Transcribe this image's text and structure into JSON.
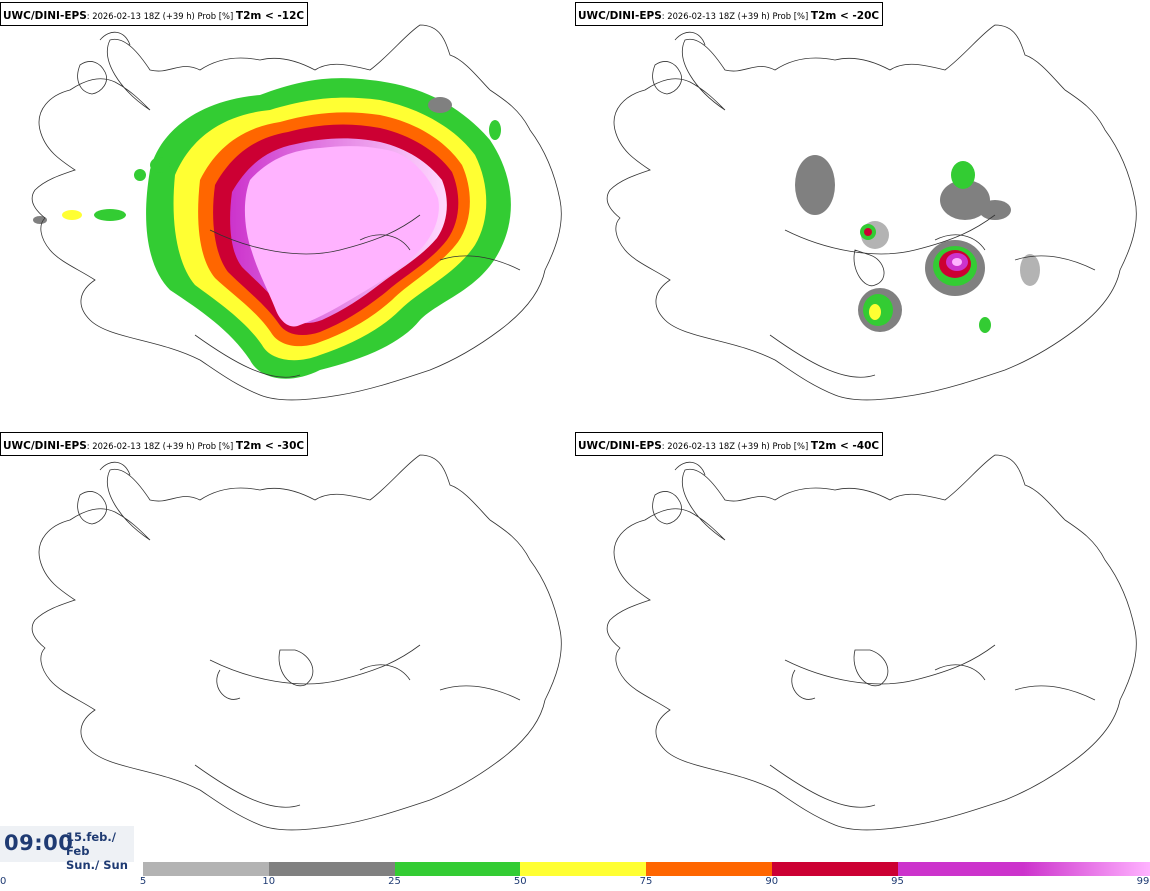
{
  "panels": [
    {
      "model": "UWC/DINI-EPS",
      "meta": ": 2026-02-13 18Z (+39 h) Prob [%] ",
      "variable": "T2m < -12C"
    },
    {
      "model": "UWC/DINI-EPS",
      "meta": ": 2026-02-13 18Z (+39 h) Prob [%] ",
      "variable": "T2m < -20C"
    },
    {
      "model": "UWC/DINI-EPS",
      "meta": ": 2026-02-13 18Z (+39 h) Prob [%] ",
      "variable": "T2m < -30C"
    },
    {
      "model": "UWC/DINI-EPS",
      "meta": ": 2026-02-13 18Z (+39 h) Prob [%] ",
      "variable": "T2m < -40C"
    }
  ],
  "valid": {
    "time": "09:00",
    "date_line1": "15.feb./ Feb",
    "date_line2": "Sun./ Sun"
  },
  "colorbar": {
    "ticks": [
      "0",
      "5",
      "10",
      "25",
      "50",
      "75",
      "90",
      "95",
      "99"
    ],
    "colors": [
      "#b3b3b3",
      "#808080",
      "#33cc33",
      "#ffff33",
      "#ff6600",
      "#cc0033",
      "#cc33cc",
      "#ffb3ff"
    ]
  }
}
